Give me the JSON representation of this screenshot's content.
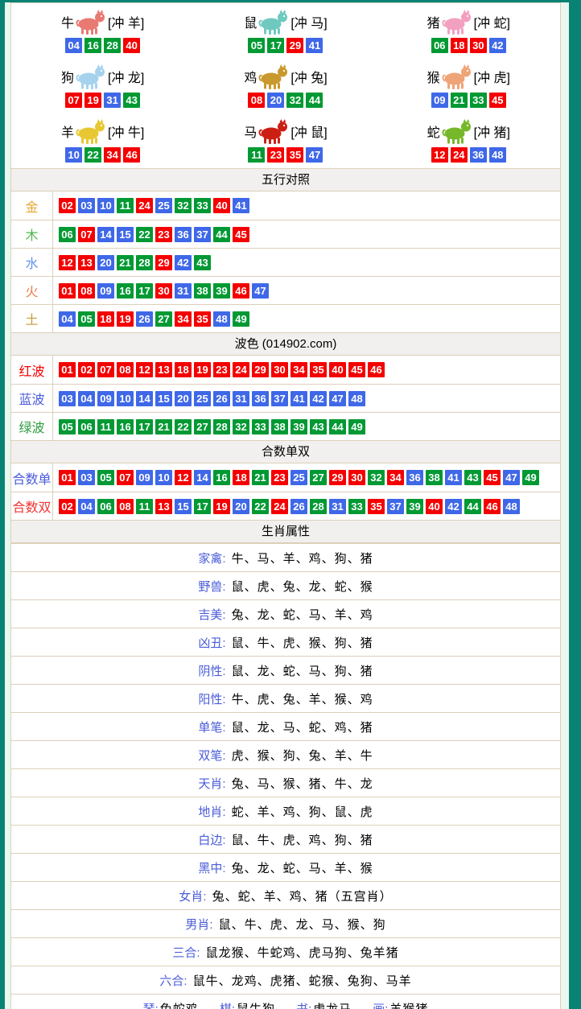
{
  "colors": {
    "r": "#f50000",
    "b": "#3f68e8",
    "g": "#009933"
  },
  "zodiac_grid": {
    "cells": [
      {
        "name": "牛",
        "clash": "[冲 羊]",
        "icon": "ox-icon",
        "icon_color": "#e87a72",
        "numbers": [
          [
            "04",
            "b"
          ],
          [
            "16",
            "g"
          ],
          [
            "28",
            "g"
          ],
          [
            "40",
            "r"
          ]
        ]
      },
      {
        "name": "鼠",
        "clash": "[冲 马]",
        "icon": "rat-icon",
        "icon_color": "#6fc9bf",
        "numbers": [
          [
            "05",
            "g"
          ],
          [
            "17",
            "g"
          ],
          [
            "29",
            "r"
          ],
          [
            "41",
            "b"
          ]
        ]
      },
      {
        "name": "猪",
        "clash": "[冲 蛇]",
        "icon": "pig-icon",
        "icon_color": "#f2a0c0",
        "numbers": [
          [
            "06",
            "g"
          ],
          [
            "18",
            "r"
          ],
          [
            "30",
            "r"
          ],
          [
            "42",
            "b"
          ]
        ]
      },
      {
        "name": "狗",
        "clash": "[冲 龙]",
        "icon": "dog-icon",
        "icon_color": "#a6d2ee",
        "numbers": [
          [
            "07",
            "r"
          ],
          [
            "19",
            "r"
          ],
          [
            "31",
            "b"
          ],
          [
            "43",
            "g"
          ]
        ]
      },
      {
        "name": "鸡",
        "clash": "[冲 兔]",
        "icon": "rooster-icon",
        "icon_color": "#c9992f",
        "numbers": [
          [
            "08",
            "r"
          ],
          [
            "20",
            "b"
          ],
          [
            "32",
            "g"
          ],
          [
            "44",
            "g"
          ]
        ]
      },
      {
        "name": "猴",
        "clash": "[冲 虎]",
        "icon": "monkey-icon",
        "icon_color": "#efa477",
        "numbers": [
          [
            "09",
            "b"
          ],
          [
            "21",
            "g"
          ],
          [
            "33",
            "g"
          ],
          [
            "45",
            "r"
          ]
        ]
      },
      {
        "name": "羊",
        "clash": "[冲 牛]",
        "icon": "goat-icon",
        "icon_color": "#e8c832",
        "numbers": [
          [
            "10",
            "b"
          ],
          [
            "22",
            "g"
          ],
          [
            "34",
            "r"
          ],
          [
            "46",
            "r"
          ]
        ]
      },
      {
        "name": "马",
        "clash": "[冲 鼠]",
        "icon": "horse-icon",
        "icon_color": "#cc1f14",
        "numbers": [
          [
            "11",
            "g"
          ],
          [
            "23",
            "r"
          ],
          [
            "35",
            "r"
          ],
          [
            "47",
            "b"
          ]
        ]
      },
      {
        "name": "蛇",
        "clash": "[冲 猪]",
        "icon": "snake-icon",
        "icon_color": "#76b82a",
        "numbers": [
          [
            "12",
            "r"
          ],
          [
            "24",
            "r"
          ],
          [
            "36",
            "b"
          ],
          [
            "48",
            "b"
          ]
        ]
      }
    ]
  },
  "five_elements": {
    "header": "五行对照",
    "rows": [
      {
        "label": "金",
        "label_color": "#e6a735",
        "numbers": [
          [
            "02",
            "r"
          ],
          [
            "03",
            "b"
          ],
          [
            "10",
            "b"
          ],
          [
            "11",
            "g"
          ],
          [
            "24",
            "r"
          ],
          [
            "25",
            "b"
          ],
          [
            "32",
            "g"
          ],
          [
            "33",
            "g"
          ],
          [
            "40",
            "r"
          ],
          [
            "41",
            "b"
          ]
        ]
      },
      {
        "label": "木",
        "label_color": "#51b551",
        "numbers": [
          [
            "06",
            "g"
          ],
          [
            "07",
            "r"
          ],
          [
            "14",
            "b"
          ],
          [
            "15",
            "b"
          ],
          [
            "22",
            "g"
          ],
          [
            "23",
            "r"
          ],
          [
            "36",
            "b"
          ],
          [
            "37",
            "b"
          ],
          [
            "44",
            "g"
          ],
          [
            "45",
            "r"
          ]
        ]
      },
      {
        "label": "水",
        "label_color": "#6292e8",
        "numbers": [
          [
            "12",
            "r"
          ],
          [
            "13",
            "r"
          ],
          [
            "20",
            "b"
          ],
          [
            "21",
            "g"
          ],
          [
            "28",
            "g"
          ],
          [
            "29",
            "r"
          ],
          [
            "42",
            "b"
          ],
          [
            "43",
            "g"
          ]
        ]
      },
      {
        "label": "火",
        "label_color": "#ec7c4f",
        "numbers": [
          [
            "01",
            "r"
          ],
          [
            "08",
            "r"
          ],
          [
            "09",
            "b"
          ],
          [
            "16",
            "g"
          ],
          [
            "17",
            "g"
          ],
          [
            "30",
            "r"
          ],
          [
            "31",
            "b"
          ],
          [
            "38",
            "g"
          ],
          [
            "39",
            "g"
          ],
          [
            "46",
            "r"
          ],
          [
            "47",
            "b"
          ]
        ]
      },
      {
        "label": "土",
        "label_color": "#c79a33",
        "numbers": [
          [
            "04",
            "b"
          ],
          [
            "05",
            "g"
          ],
          [
            "18",
            "r"
          ],
          [
            "19",
            "r"
          ],
          [
            "26",
            "b"
          ],
          [
            "27",
            "g"
          ],
          [
            "34",
            "r"
          ],
          [
            "35",
            "r"
          ],
          [
            "48",
            "b"
          ],
          [
            "49",
            "g"
          ]
        ]
      }
    ]
  },
  "waves": {
    "header": "波色 (014902.com)",
    "rows": [
      {
        "label": "红波",
        "label_color": "#f50000",
        "numbers": [
          [
            "01",
            "r"
          ],
          [
            "02",
            "r"
          ],
          [
            "07",
            "r"
          ],
          [
            "08",
            "r"
          ],
          [
            "12",
            "r"
          ],
          [
            "13",
            "r"
          ],
          [
            "18",
            "r"
          ],
          [
            "19",
            "r"
          ],
          [
            "23",
            "r"
          ],
          [
            "24",
            "r"
          ],
          [
            "29",
            "r"
          ],
          [
            "30",
            "r"
          ],
          [
            "34",
            "r"
          ],
          [
            "35",
            "r"
          ],
          [
            "40",
            "r"
          ],
          [
            "45",
            "r"
          ],
          [
            "46",
            "r"
          ]
        ]
      },
      {
        "label": "蓝波",
        "label_color": "#4a5cd8",
        "numbers": [
          [
            "03",
            "b"
          ],
          [
            "04",
            "b"
          ],
          [
            "09",
            "b"
          ],
          [
            "10",
            "b"
          ],
          [
            "14",
            "b"
          ],
          [
            "15",
            "b"
          ],
          [
            "20",
            "b"
          ],
          [
            "25",
            "b"
          ],
          [
            "26",
            "b"
          ],
          [
            "31",
            "b"
          ],
          [
            "36",
            "b"
          ],
          [
            "37",
            "b"
          ],
          [
            "41",
            "b"
          ],
          [
            "42",
            "b"
          ],
          [
            "47",
            "b"
          ],
          [
            "48",
            "b"
          ]
        ]
      },
      {
        "label": "绿波",
        "label_color": "#2e9e3f",
        "numbers": [
          [
            "05",
            "g"
          ],
          [
            "06",
            "g"
          ],
          [
            "11",
            "g"
          ],
          [
            "16",
            "g"
          ],
          [
            "17",
            "g"
          ],
          [
            "21",
            "g"
          ],
          [
            "22",
            "g"
          ],
          [
            "27",
            "g"
          ],
          [
            "28",
            "g"
          ],
          [
            "32",
            "g"
          ],
          [
            "33",
            "g"
          ],
          [
            "38",
            "g"
          ],
          [
            "39",
            "g"
          ],
          [
            "43",
            "g"
          ],
          [
            "44",
            "g"
          ],
          [
            "49",
            "g"
          ]
        ]
      }
    ]
  },
  "sum_parity": {
    "header": "合数单双",
    "rows": [
      {
        "label": "合数单",
        "label_color": "#4a5cd8",
        "numbers": [
          [
            "01",
            "r"
          ],
          [
            "03",
            "b"
          ],
          [
            "05",
            "g"
          ],
          [
            "07",
            "r"
          ],
          [
            "09",
            "b"
          ],
          [
            "10",
            "b"
          ],
          [
            "12",
            "r"
          ],
          [
            "14",
            "b"
          ],
          [
            "16",
            "g"
          ],
          [
            "18",
            "r"
          ],
          [
            "21",
            "g"
          ],
          [
            "23",
            "r"
          ],
          [
            "25",
            "b"
          ],
          [
            "27",
            "g"
          ],
          [
            "29",
            "r"
          ],
          [
            "30",
            "r"
          ],
          [
            "32",
            "g"
          ],
          [
            "34",
            "r"
          ],
          [
            "36",
            "b"
          ],
          [
            "38",
            "g"
          ],
          [
            "41",
            "b"
          ],
          [
            "43",
            "g"
          ],
          [
            "45",
            "r"
          ],
          [
            "47",
            "b"
          ],
          [
            "49",
            "g"
          ]
        ]
      },
      {
        "label": "合数双",
        "label_color": "#ef3434",
        "numbers": [
          [
            "02",
            "r"
          ],
          [
            "04",
            "b"
          ],
          [
            "06",
            "g"
          ],
          [
            "08",
            "r"
          ],
          [
            "11",
            "g"
          ],
          [
            "13",
            "r"
          ],
          [
            "15",
            "b"
          ],
          [
            "17",
            "g"
          ],
          [
            "19",
            "r"
          ],
          [
            "20",
            "b"
          ],
          [
            "22",
            "g"
          ],
          [
            "24",
            "r"
          ],
          [
            "26",
            "b"
          ],
          [
            "28",
            "g"
          ],
          [
            "31",
            "b"
          ],
          [
            "33",
            "g"
          ],
          [
            "35",
            "r"
          ],
          [
            "37",
            "b"
          ],
          [
            "39",
            "g"
          ],
          [
            "40",
            "r"
          ],
          [
            "42",
            "b"
          ],
          [
            "44",
            "g"
          ],
          [
            "46",
            "r"
          ],
          [
            "48",
            "b"
          ]
        ]
      }
    ]
  },
  "attributes": {
    "header": "生肖属性",
    "rows": [
      {
        "label": "家禽:",
        "value": "牛、马、羊、鸡、狗、猪"
      },
      {
        "label": "野兽:",
        "value": "鼠、虎、兔、龙、蛇、猴"
      },
      {
        "label": "吉美:",
        "value": "兔、龙、蛇、马、羊、鸡"
      },
      {
        "label": "凶丑:",
        "value": "鼠、牛、虎、猴、狗、猪"
      },
      {
        "label": "阴性:",
        "value": "鼠、龙、蛇、马、狗、猪"
      },
      {
        "label": "阳性:",
        "value": "牛、虎、兔、羊、猴、鸡"
      },
      {
        "label": "单笔:",
        "value": "鼠、龙、马、蛇、鸡、猪"
      },
      {
        "label": "双笔:",
        "value": "虎、猴、狗、兔、羊、牛"
      },
      {
        "label": "天肖:",
        "value": "兔、马、猴、猪、牛、龙"
      },
      {
        "label": "地肖:",
        "value": "蛇、羊、鸡、狗、鼠、虎"
      },
      {
        "label": "白边:",
        "value": "鼠、牛、虎、鸡、狗、猪"
      },
      {
        "label": "黑中:",
        "value": "兔、龙、蛇、马、羊、猴"
      },
      {
        "label": "女肖:",
        "value": "兔、蛇、羊、鸡、猪（五宫肖）"
      },
      {
        "label": "男肖:",
        "value": "鼠、牛、虎、龙、马、猴、狗"
      },
      {
        "label": "三合:",
        "value": "鼠龙猴、牛蛇鸡、虎马狗、兔羊猪"
      },
      {
        "label": "六合:",
        "value": "鼠牛、龙鸡、虎猪、蛇猴、兔狗、马羊"
      }
    ],
    "bottom_partial": [
      {
        "label": "琴:",
        "value": "兔蛇鸡"
      },
      {
        "label": "棋:",
        "value": "鼠牛狗"
      },
      {
        "label": "书:",
        "value": "虎龙马"
      },
      {
        "label": "画:",
        "value": "羊猴猪"
      }
    ]
  }
}
